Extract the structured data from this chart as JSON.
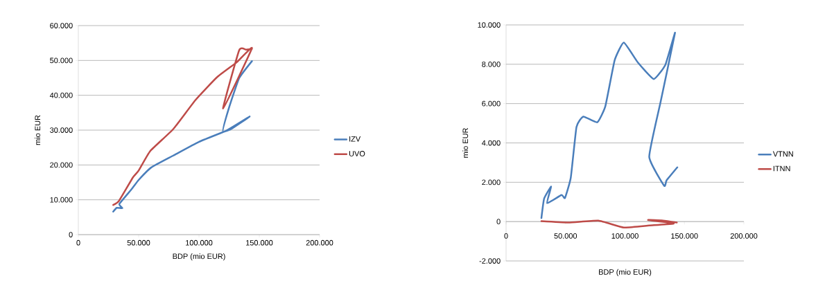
{
  "chart_data": [
    {
      "type": "line",
      "xlabel": "BDP (mio EUR)",
      "ylabel": "mio EUR",
      "xlim": [
        0,
        200000
      ],
      "ylim": [
        0,
        60000
      ],
      "xticks": [
        0,
        {
          "value": 50000,
          "label": "50.000"
        },
        {
          "value": 100000,
          "label": "100.000"
        },
        {
          "value": 150000,
          "label": "150.000"
        },
        {
          "value": 200000,
          "label": "200.000"
        }
      ],
      "yticks": [
        0,
        {
          "value": 10000,
          "label": "10.000"
        },
        {
          "value": 20000,
          "label": "20.000"
        },
        {
          "value": 30000,
          "label": "30.000"
        },
        {
          "value": 40000,
          "label": "40.000"
        },
        {
          "value": 50000,
          "label": "50.000"
        },
        {
          "value": 60000,
          "label": "60.000"
        }
      ],
      "grid": "y",
      "legend": "right",
      "marker": "none",
      "line_style": "solid",
      "series": [
        {
          "name": "IZV",
          "color": "#4a7ebb",
          "x": [
            28900,
            31800,
            36500,
            34000,
            44300,
            50000,
            60500,
            78700,
            99800,
            119000,
            126600,
            142000,
            120000,
            124700,
            133300,
            143900
          ],
          "values": [
            6600,
            7700,
            7600,
            8800,
            13100,
            15700,
            19300,
            22700,
            26600,
            29300,
            30300,
            33900,
            29500,
            36200,
            44900,
            49800
          ]
        },
        {
          "name": "UVO",
          "color": "#be4b48",
          "x": [
            28900,
            33700,
            45200,
            50000,
            59600,
            78700,
            97000,
            115000,
            131400,
            143900,
            120000,
            133300,
            139000,
            143900
          ],
          "values": [
            8500,
            9700,
            16400,
            18400,
            24000,
            30300,
            38600,
            45200,
            49500,
            53500,
            36200,
            52900,
            53100,
            53300
          ]
        }
      ]
    },
    {
      "type": "line",
      "xlabel": "BDP (mio EUR)",
      "ylabel": "mio EUR",
      "xlim": [
        0,
        200000
      ],
      "ylim": [
        -2000,
        10000
      ],
      "xticks": [
        0,
        {
          "value": 50000,
          "label": "50.000"
        },
        {
          "value": 100000,
          "label": "100.000"
        },
        {
          "value": 150000,
          "label": "150.000"
        },
        {
          "value": 200000,
          "label": "200.000"
        }
      ],
      "yticks": [
        {
          "value": -2000,
          "label": "-2.000"
        },
        0,
        {
          "value": 2000,
          "label": "2.000"
        },
        {
          "value": 4000,
          "label": "4.000"
        },
        {
          "value": 6000,
          "label": "6.000"
        },
        {
          "value": 8000,
          "label": "8.000"
        },
        {
          "value": 10000,
          "label": "10.000"
        }
      ],
      "grid": "y",
      "legend": "right",
      "marker": "none",
      "line_style": "solid",
      "series": [
        {
          "name": "VTNN",
          "color": "#4a7ebb",
          "x": [
            29700,
            32000,
            37900,
            34500,
            46600,
            49500,
            54400,
            59200,
            65000,
            76700,
            83500,
            91300,
            99000,
            110700,
            124200,
            134000,
            142100,
            130000,
            120400,
            133000,
            135000,
            144000
          ],
          "values": [
            180,
            1170,
            1780,
            940,
            1350,
            1200,
            2230,
            4810,
            5340,
            5050,
            5870,
            8200,
            9100,
            8100,
            7250,
            7980,
            9600,
            6100,
            3290,
            1820,
            2100,
            2760
          ]
        },
        {
          "name": "ITNN",
          "color": "#be4b48",
          "x": [
            29700,
            52400,
            77600,
            99000,
            120400,
            141000,
            119400,
            132000,
            143600
          ],
          "values": [
            20,
            -50,
            50,
            -300,
            -200,
            -100,
            80,
            50,
            -50
          ]
        }
      ]
    }
  ]
}
